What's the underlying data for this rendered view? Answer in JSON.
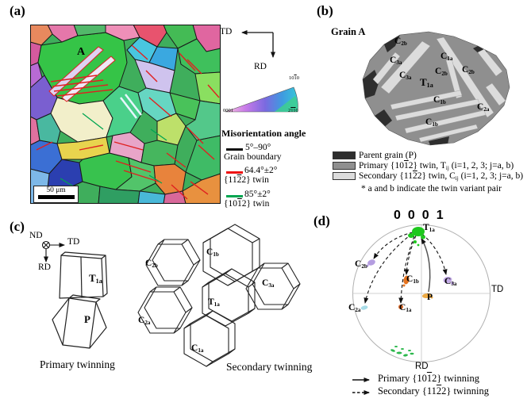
{
  "panels": {
    "a": {
      "label": "(a)",
      "grain_marker": "A",
      "scale_bar": "50 μm",
      "dir_td": "TD",
      "dir_rd": "RD",
      "ipf": {
        "corner_0001": [
          {
            "t": "0001"
          }
        ],
        "corner_1010": [
          {
            "t": "10"
          },
          {
            "t": "1",
            "bar": true
          },
          {
            "t": "0"
          }
        ],
        "corner_2110": [
          {
            "t": "2"
          },
          {
            "t": "1",
            "bar": true
          },
          {
            "t": "1",
            "bar": true
          },
          {
            "t": "0"
          }
        ]
      },
      "legend": {
        "title": "Misorientation angle",
        "entries": [
          {
            "color": "#111111",
            "angle": "5°–90°",
            "name": [
              {
                "t": "Grain boundary"
              }
            ]
          },
          {
            "color": "#ee1111",
            "angle": "64.4°±2°",
            "name": [
              {
                "t": "{11"
              },
              {
                "t": "2",
                "bar": true
              },
              {
                "t": "2} twin"
              }
            ]
          },
          {
            "color": "#00a550",
            "angle": "85°±2°",
            "name": [
              {
                "t": "{10"
              },
              {
                "t": "1",
                "bar": true
              },
              {
                "t": "2} twin"
              }
            ]
          }
        ]
      }
    },
    "b": {
      "label": "(b)",
      "title": "Grain A",
      "twin_labels": [
        {
          "runs": [
            {
              "t": "C"
            },
            {
              "t": "2b",
              "sub": true
            }
          ]
        },
        {
          "runs": [
            {
              "t": "C"
            },
            {
              "t": "3a",
              "sub": true
            }
          ]
        },
        {
          "runs": [
            {
              "t": "C"
            },
            {
              "t": "1a",
              "sub": true
            }
          ]
        },
        {
          "runs": [
            {
              "t": "C"
            },
            {
              "t": "2b",
              "sub": true
            }
          ]
        },
        {
          "runs": [
            {
              "t": "C"
            },
            {
              "t": "2b",
              "sub": true
            }
          ]
        },
        {
          "runs": [
            {
              "t": "C"
            },
            {
              "t": "3a",
              "sub": true
            }
          ]
        },
        {
          "runs": [
            {
              "t": "T"
            },
            {
              "t": "1a",
              "sub": true
            }
          ]
        },
        {
          "runs": [
            {
              "t": "C"
            },
            {
              "t": "1b",
              "sub": true
            }
          ]
        },
        {
          "runs": [
            {
              "t": "C"
            },
            {
              "t": "2a",
              "sub": true
            }
          ]
        },
        {
          "runs": [
            {
              "t": "C"
            },
            {
              "t": "1b",
              "sub": true
            }
          ]
        }
      ],
      "legend": {
        "rows": [
          {
            "swatch": "#2e2e2e",
            "runs": [
              {
                "t": "Parent grain (P)"
              }
            ]
          },
          {
            "swatch": "#8f8f8f",
            "runs": [
              {
                "t": "Primary {10"
              },
              {
                "t": "1",
                "bar": true
              },
              {
                "t": "2} twin, T"
              },
              {
                "t": "ij",
                "sub": true
              },
              {
                "t": " (i=1, 2, 3; j=a, b)"
              }
            ]
          },
          {
            "swatch": "#dcdcdc",
            "runs": [
              {
                "t": "Secondary {11"
              },
              {
                "t": "2",
                "bar": true
              },
              {
                "t": "2} twin, C"
              },
              {
                "t": "ij",
                "sub": true
              },
              {
                "t": " (i=1, 2, 3; j=a, b)"
              }
            ]
          }
        ],
        "footnote": "* a and b indicate the twin variant pair"
      }
    },
    "c": {
      "label": "(c)",
      "axis_nd": "ND",
      "axis_td": "TD",
      "axis_rd": "RD",
      "labels": {
        "t1a": [
          {
            "t": "T"
          },
          {
            "t": "1a",
            "sub": true
          }
        ],
        "p": [
          {
            "t": "P"
          }
        ],
        "c2b": [
          {
            "t": "C"
          },
          {
            "t": "2b",
            "sub": true
          }
        ],
        "c1b": [
          {
            "t": "C"
          },
          {
            "t": "1b",
            "sub": true
          }
        ],
        "c3a": [
          {
            "t": "C"
          },
          {
            "t": "3a",
            "sub": true
          }
        ],
        "c2a": [
          {
            "t": "C"
          },
          {
            "t": "2a",
            "sub": true
          }
        ],
        "c1a": [
          {
            "t": "C"
          },
          {
            "t": "1a",
            "sub": true
          }
        ]
      },
      "caption_primary": "Primary twinning",
      "caption_secondary": "Secondary twinning"
    },
    "d": {
      "label": "(d)",
      "pole_label": "0001",
      "axis_td": "TD",
      "axis_rd": "RD",
      "clusters": {
        "t1a": {
          "color": "#1ec81e",
          "runs": [
            {
              "t": "T"
            },
            {
              "t": "1a",
              "sub": true
            }
          ]
        },
        "c2b": {
          "color": "#b49de0",
          "runs": [
            {
              "t": "C"
            },
            {
              "t": "2b",
              "sub": true
            }
          ]
        },
        "c1b": {
          "color": "#e5731f",
          "runs": [
            {
              "t": "C"
            },
            {
              "t": "1b",
              "sub": true
            }
          ]
        },
        "c3a": {
          "color": "#c4abe8",
          "runs": [
            {
              "t": "C"
            },
            {
              "t": "3a",
              "sub": true
            }
          ]
        },
        "p": {
          "color": "#edaa45",
          "runs": [
            {
              "t": "P"
            }
          ]
        },
        "c2a": {
          "color": "#a8dce8",
          "runs": [
            {
              "t": "C"
            },
            {
              "t": "2a",
              "sub": true
            }
          ]
        },
        "c1a": {
          "color": "#d96a2a",
          "runs": [
            {
              "t": "C"
            },
            {
              "t": "1a",
              "sub": true
            }
          ]
        },
        "rd_trace": {
          "color": "#2db84d"
        }
      },
      "legend": [
        {
          "style": "solid",
          "runs": [
            {
              "t": "Primary {10"
            },
            {
              "t": "1",
              "bar": true
            },
            {
              "t": "2} twinning"
            }
          ]
        },
        {
          "style": "dashed",
          "runs": [
            {
              "t": "Secondary {11"
            },
            {
              "t": "2",
              "bar": true
            },
            {
              "t": "2} twinning"
            }
          ]
        }
      ]
    }
  }
}
